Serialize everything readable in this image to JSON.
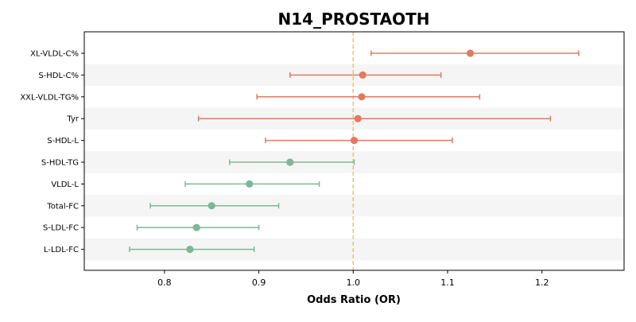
{
  "chart_data": {
    "type": "forest",
    "title": "N14_PROSTAOTH",
    "xlabel": "Odds Ratio (OR)",
    "ylabel": "",
    "xlim": [
      0.715,
      1.287
    ],
    "x_ticks": [
      "0.8",
      "0.9",
      "1.0",
      "1.1",
      "1.2"
    ],
    "x_tick_values": [
      0.8,
      0.9,
      1.0,
      1.1,
      1.2
    ],
    "reference_line": 1.0,
    "grid": false,
    "band_color": "#f5f5f5",
    "reference_color": "#f0c060",
    "colors": {
      "increased": "#e07b61",
      "decreased": "#80b599"
    },
    "rows": [
      {
        "label": "XL-VLDL-C%",
        "or": 1.124,
        "lower": 1.019,
        "upper": 1.239,
        "direction": "increased"
      },
      {
        "label": "S-HDL-C%",
        "or": 1.01,
        "lower": 0.933,
        "upper": 1.093,
        "direction": "increased"
      },
      {
        "label": "XXL-VLDL-TG%",
        "or": 1.009,
        "lower": 0.898,
        "upper": 1.134,
        "direction": "increased"
      },
      {
        "label": "Tyr",
        "or": 1.005,
        "lower": 0.836,
        "upper": 1.209,
        "direction": "increased"
      },
      {
        "label": "S-HDL-L",
        "or": 1.001,
        "lower": 0.907,
        "upper": 1.105,
        "direction": "increased"
      },
      {
        "label": "S-HDL-TG",
        "or": 0.933,
        "lower": 0.869,
        "upper": 1.001,
        "direction": "decreased"
      },
      {
        "label": "VLDL-L",
        "or": 0.89,
        "lower": 0.822,
        "upper": 0.964,
        "direction": "decreased"
      },
      {
        "label": "Total-FC",
        "or": 0.85,
        "lower": 0.785,
        "upper": 0.921,
        "direction": "decreased"
      },
      {
        "label": "S-LDL-FC",
        "or": 0.834,
        "lower": 0.771,
        "upper": 0.9,
        "direction": "decreased"
      },
      {
        "label": "L-LDL-FC",
        "or": 0.827,
        "lower": 0.763,
        "upper": 0.895,
        "direction": "decreased"
      }
    ]
  }
}
